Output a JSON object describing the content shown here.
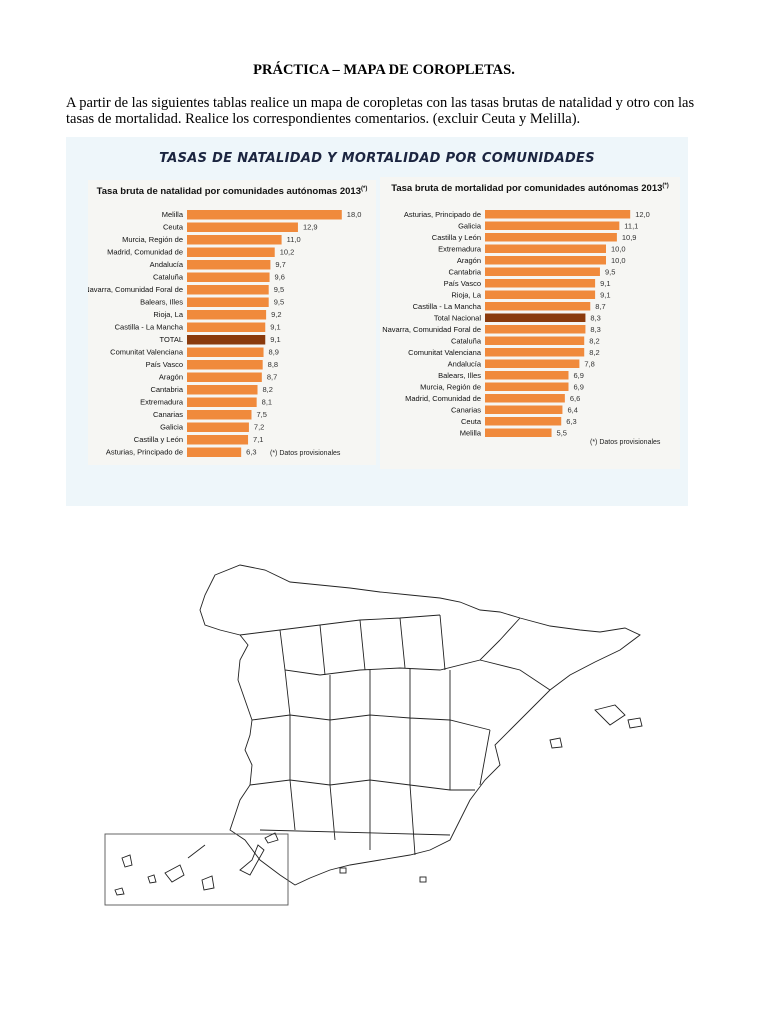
{
  "document": {
    "title": "PRÁCTICA – MAPA DE COROPLETAS.",
    "intro": "A partir de las siguientes tablas realice un mapa de coropletas con las tasas brutas de natalidad y otro con las tasas de mortalidad. Realice los correspondientes comentarios. (excluir Ceuta y Melilla).",
    "panel_title": "TASAS DE NATALIDAD Y MORTALIDAD POR COMUNIDADES"
  },
  "colors": {
    "bar": "#f08a3c",
    "total_bar": "#8a3a0c",
    "panel_bg": "#eef6fa"
  },
  "chart_data": [
    {
      "type": "bar",
      "orientation": "horizontal",
      "title": "Tasa bruta de natalidad por comunidades autónomas 2013",
      "title_sup": "(*)",
      "note": "(*) Datos provisionales",
      "categories": [
        "Melilla",
        "Ceuta",
        "Murcia, Región de",
        "Madrid, Comunidad de",
        "Andalucía",
        "Cataluña",
        "Navarra, Comunidad Foral de",
        "Balears, Illes",
        "Rioja, La",
        "Castilla - La Mancha",
        "TOTAL",
        "Comunitat Valenciana",
        "País Vasco",
        "Aragón",
        "Cantabria",
        "Extremadura",
        "Canarias",
        "Galicia",
        "Castilla y León",
        "Asturias, Principado de"
      ],
      "values": [
        18.0,
        12.9,
        11.0,
        10.2,
        9.7,
        9.6,
        9.5,
        9.5,
        9.2,
        9.1,
        9.1,
        8.9,
        8.8,
        8.7,
        8.2,
        8.1,
        7.5,
        7.2,
        7.1,
        6.3
      ],
      "value_labels": [
        "18,0",
        "12,9",
        "11,0",
        "10,2",
        "9,7",
        "9,6",
        "9,5",
        "9,5",
        "9,2",
        "9,1",
        "9,1",
        "8,9",
        "8,8",
        "8,7",
        "8,2",
        "8,1",
        "7,5",
        "7,2",
        "7,1",
        "6,3"
      ],
      "highlight": "TOTAL"
    },
    {
      "type": "bar",
      "orientation": "horizontal",
      "title": "Tasa bruta de mortalidad por comunidades autónomas 2013",
      "title_sup": "(*)",
      "note": "(*) Datos provisionales",
      "categories": [
        "Asturias, Principado de",
        "Galicia",
        "Castilla y León",
        "Extremadura",
        "Aragón",
        "Cantabria",
        "País Vasco",
        "Rioja, La",
        "Castilla - La Mancha",
        "Total Nacional",
        "Navarra, Comunidad Foral de",
        "Cataluña",
        "Comunitat Valenciana",
        "Andalucía",
        "Balears, Illes",
        "Murcia, Región de",
        "Madrid, Comunidad de",
        "Canarias",
        "Ceuta",
        "Melilla"
      ],
      "values": [
        12.0,
        11.1,
        10.9,
        10.0,
        10.0,
        9.5,
        9.1,
        9.1,
        8.7,
        8.3,
        8.3,
        8.2,
        8.2,
        7.8,
        6.9,
        6.9,
        6.6,
        6.4,
        6.3,
        5.5
      ],
      "value_labels": [
        "12,0",
        "11,1",
        "10,9",
        "10,0",
        "10,0",
        "9,5",
        "9,1",
        "9,1",
        "8,7",
        "8,3",
        "8,3",
        "8,2",
        "8,2",
        "7,8",
        "6,9",
        "6,9",
        "6,6",
        "6,4",
        "6,3",
        "5,5"
      ],
      "highlight": "Total Nacional"
    }
  ]
}
